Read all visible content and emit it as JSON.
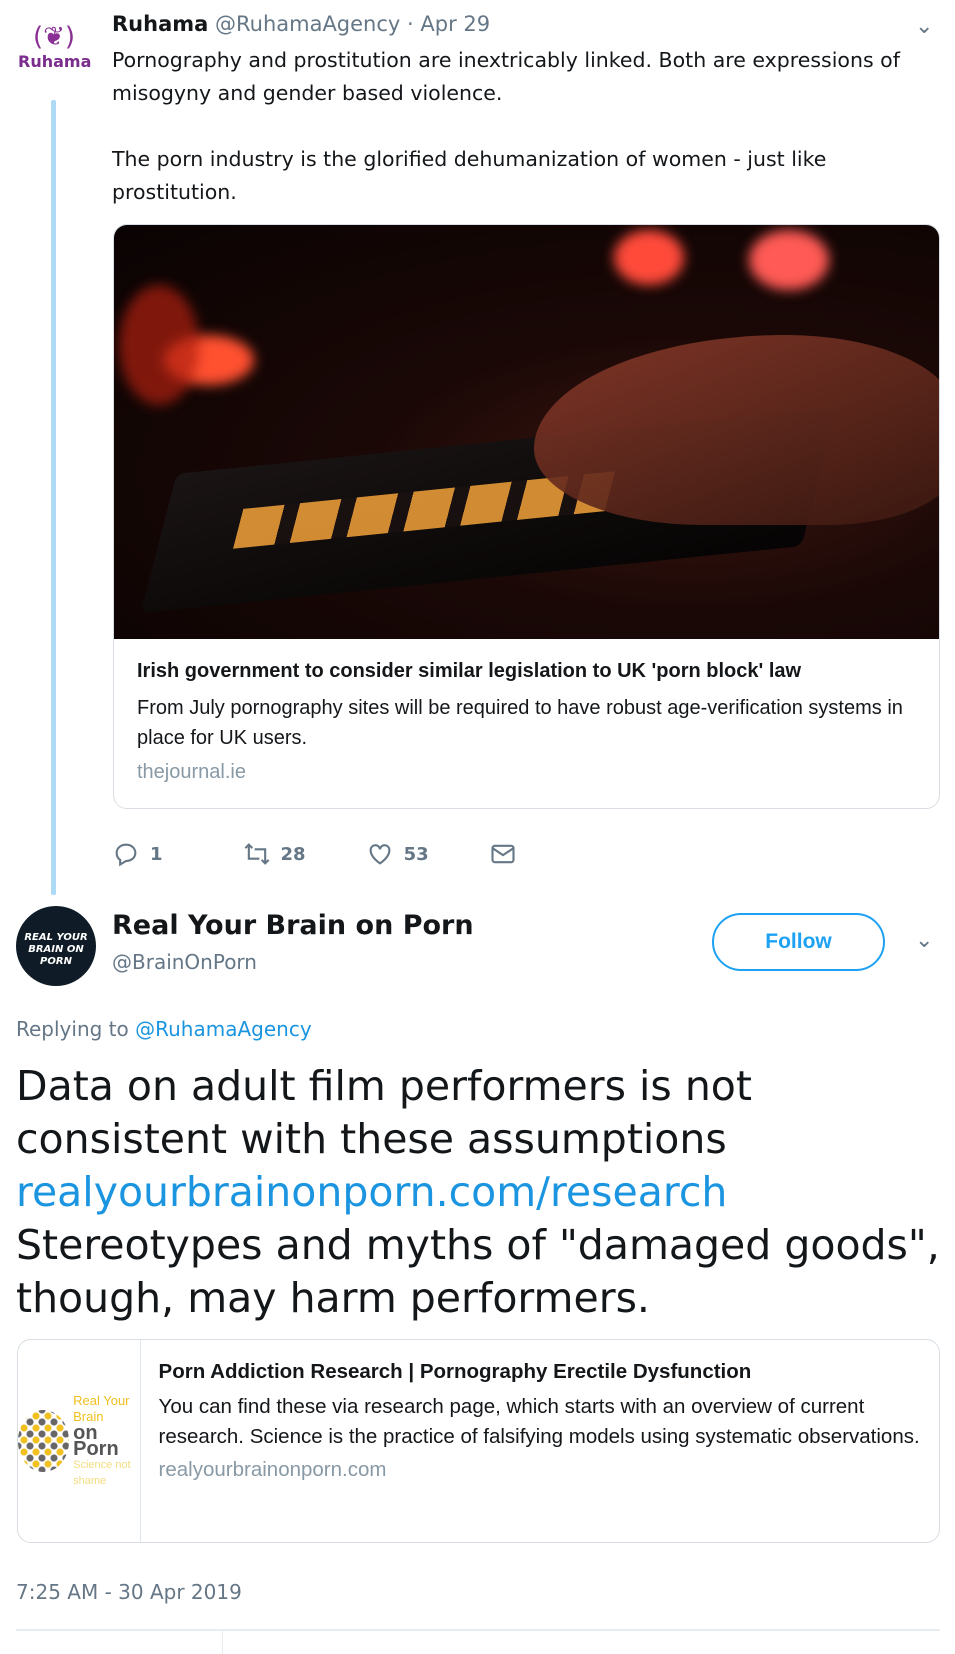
{
  "tweet1": {
    "avatar_text": "Ruhama",
    "name": "Ruhama",
    "handle": "@RuhamaAgency",
    "date": "· Apr 29",
    "text": "Pornography and prostitution are inextricably linked. Both are expressions of misogyny and gender based violence.\n\nThe porn industry is the glorified dehumanization of women - just like prostitution.",
    "card": {
      "title": "Irish government to consider similar legislation to UK 'porn block' law",
      "description": "From July pornography sites will be required to have robust age-verification systems in place for UK users.",
      "domain": "thejournal.ie"
    },
    "actions": {
      "replies": "1",
      "retweets": "28",
      "likes": "53"
    }
  },
  "tweet2": {
    "avatar_text": "REAL YOUR BRAIN ON PORN",
    "name": "Real Your Brain on Porn",
    "handle": "@BrainOnPorn",
    "follow_label": "Follow",
    "replying_prefix": "Replying to",
    "replying_handle": "@RuhamaAgency",
    "text_1": "Data on adult film performers is not consistent with these assumptions",
    "link": "realyourbrainonporn.com/research",
    "text_2": "Stereotypes and myths of \"damaged goods\", though, may harm performers.",
    "card": {
      "logo_line1": "Real Your Brain",
      "logo_line2": "on Porn",
      "logo_line3": "Science not shame",
      "title": "Porn Addiction Research | Pornography Erectile Dysfunction",
      "description": "You can find these via research page, which starts with an overview of current research. Science is the practice of falsifying models using systematic observations.",
      "domain": "realyourbrainonporn.com"
    },
    "timestamp": "7:25 AM - 30 Apr 2019"
  },
  "colors": {
    "accent": "#1da1f2",
    "link": "#1b95e0",
    "muted": "#657786",
    "thread": "#aedaf5"
  }
}
